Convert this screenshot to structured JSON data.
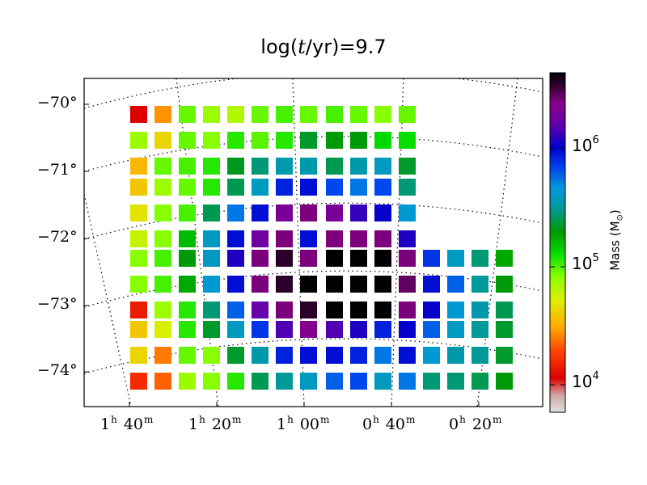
{
  "chart_data": {
    "type": "heatmap",
    "title_prefix": "log(",
    "title_var": "t",
    "title_suffix": "/yr)=9.7",
    "colorbar": {
      "label": "Mass (M",
      "label_sub": "⊙",
      "label_close": ")",
      "scale": "log",
      "range": [
        5000,
        5000000
      ],
      "ticks": [
        {
          "base": "10",
          "exp": "4"
        },
        {
          "base": "10",
          "exp": "5"
        },
        {
          "base": "10",
          "exp": "6"
        }
      ],
      "colormap": "nipy_spectral"
    },
    "ra_ticks": [
      {
        "h": "1",
        "m": "40"
      },
      {
        "h": "1",
        "m": "20"
      },
      {
        "h": "1",
        "m": "00"
      },
      {
        "h": "0",
        "m": "40"
      },
      {
        "h": "0",
        "m": "20"
      }
    ],
    "dec_ticks": [
      "−70°",
      "−71°",
      "−72°",
      "−73°",
      "−74°"
    ],
    "grid": true,
    "cells": [
      [
        4.0,
        4.4,
        4.95,
        4.85,
        4.8,
        4.95,
        5.0,
        4.95,
        5.0,
        4.95,
        4.9,
        4.95,
        null,
        null,
        null,
        null
      ],
      [
        4.85,
        4.6,
        4.95,
        4.9,
        5.05,
        4.97,
        5.05,
        5.35,
        5.3,
        5.3,
        5.12,
        5.1,
        null,
        null,
        null,
        null
      ],
      [
        4.5,
        4.95,
        5.0,
        5.05,
        5.33,
        5.45,
        5.55,
        5.55,
        5.4,
        5.55,
        5.6,
        5.35,
        null,
        null,
        null,
        null
      ],
      [
        4.55,
        4.85,
        4.95,
        5.05,
        5.4,
        5.6,
        5.95,
        6.0,
        5.85,
        5.75,
        5.85,
        5.45,
        null,
        null,
        null,
        null
      ],
      [
        4.65,
        4.9,
        5.0,
        5.4,
        5.75,
        6.0,
        6.35,
        6.45,
        6.35,
        6.15,
        6.05,
        5.65,
        null,
        null,
        null,
        null
      ],
      [
        4.75,
        4.9,
        5.2,
        5.6,
        6.0,
        6.3,
        6.45,
        6.0,
        6.45,
        6.45,
        6.45,
        6.1,
        null,
        null,
        null,
        null
      ],
      [
        4.9,
        5.0,
        5.3,
        5.6,
        6.1,
        6.45,
        6.6,
        6.45,
        6.8,
        6.8,
        6.7,
        6.45,
        5.9,
        5.6,
        5.45,
        5.25
      ],
      [
        4.9,
        5.0,
        5.25,
        5.65,
        6.0,
        6.45,
        6.6,
        6.75,
        6.8,
        6.8,
        6.75,
        6.5,
        6.0,
        5.8,
        5.5,
        5.3
      ],
      [
        4.1,
        4.85,
        5.05,
        5.45,
        5.8,
        6.25,
        6.45,
        6.6,
        6.8,
        6.75,
        6.7,
        6.45,
        6.05,
        5.65,
        5.55,
        5.4
      ],
      [
        4.55,
        4.7,
        5.05,
        5.35,
        5.6,
        5.9,
        6.2,
        6.4,
        6.2,
        6.1,
        5.95,
        6.05,
        5.8,
        5.6,
        5.5,
        5.35
      ],
      [
        4.6,
        4.35,
        4.95,
        4.9,
        5.35,
        5.55,
        5.95,
        6.0,
        6.0,
        5.95,
        5.75,
        6.0,
        5.65,
        5.55,
        5.5,
        5.35
      ],
      [
        4.15,
        4.3,
        4.85,
        4.9,
        5.05,
        5.4,
        5.5,
        5.6,
        5.8,
        5.85,
        5.6,
        5.75,
        5.45,
        5.45,
        5.4,
        5.3
      ]
    ]
  }
}
